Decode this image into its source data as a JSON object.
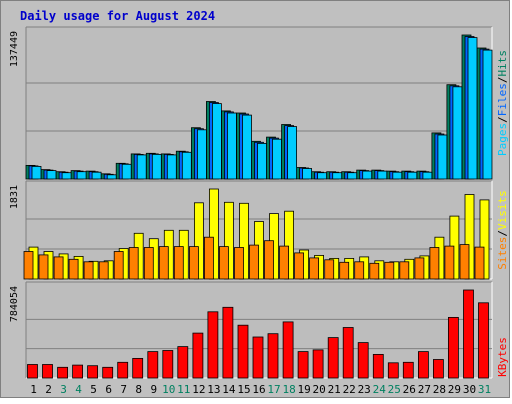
{
  "title": "Daily usage for August 2024",
  "colors": {
    "background": "#c0c0c0",
    "panel": "#bdbdbd",
    "title": "#0000cc",
    "pages": "#00ccff",
    "files": "#0066ff",
    "hits": "#008060",
    "visits": "#ffff00",
    "sites": "#ff8000",
    "kbytes": "#ff0000",
    "weekend_label": "#008060",
    "weekday_label": "#000000"
  },
  "legends": {
    "top": [
      {
        "text": "Pages",
        "color": "#00ccff"
      },
      {
        "text": "/",
        "color": "#000000"
      },
      {
        "text": "Files",
        "color": "#0066ff"
      },
      {
        "text": "/",
        "color": "#000000"
      },
      {
        "text": "Hits",
        "color": "#008060"
      }
    ],
    "middle": [
      {
        "text": "Sites",
        "color": "#ff8000"
      },
      {
        "text": "/",
        "color": "#000000"
      },
      {
        "text": "Visits",
        "color": "#ffff00"
      }
    ],
    "bottom": [
      {
        "text": "KBytes",
        "color": "#ff0000"
      }
    ]
  },
  "max_labels": {
    "top": "137449",
    "middle": "1831",
    "bottom": "784054"
  },
  "chart_data": [
    {
      "type": "bar",
      "panel": "top",
      "categories": [
        "1",
        "2",
        "3",
        "4",
        "5",
        "6",
        "7",
        "8",
        "9",
        "10",
        "11",
        "12",
        "13",
        "14",
        "15",
        "16",
        "17",
        "18",
        "19",
        "20",
        "21",
        "22",
        "23",
        "24",
        "25",
        "26",
        "27",
        "28",
        "29",
        "30",
        "31"
      ],
      "ylim": [
        0,
        137449
      ],
      "series": [
        {
          "name": "Hits",
          "values": [
            13000,
            9000,
            7000,
            8000,
            7500,
            5000,
            15000,
            24000,
            24500,
            24000,
            26500,
            49000,
            74000,
            65000,
            63000,
            36000,
            40000,
            52000,
            11000,
            7000,
            7000,
            7000,
            8500,
            8500,
            7500,
            7500,
            7500,
            44000,
            90000,
            137449,
            125000
          ]
        },
        {
          "name": "Files",
          "values": [
            12500,
            8500,
            6500,
            7500,
            7000,
            4500,
            14500,
            23500,
            24000,
            23500,
            26000,
            48000,
            73000,
            64000,
            62000,
            35000,
            39000,
            51000,
            10500,
            6500,
            6500,
            6500,
            8000,
            8000,
            7000,
            7000,
            7000,
            43000,
            89000,
            136000,
            124000
          ]
        },
        {
          "name": "Pages",
          "values": [
            12000,
            8000,
            6000,
            7000,
            6500,
            4000,
            14000,
            23000,
            23500,
            23000,
            25500,
            47000,
            72000,
            63000,
            61000,
            34000,
            38000,
            50000,
            10000,
            6000,
            6000,
            6000,
            7500,
            7500,
            6500,
            6500,
            6500,
            42000,
            88000,
            135000,
            123000
          ]
        }
      ]
    },
    {
      "type": "bar",
      "panel": "middle",
      "categories": [
        "1",
        "2",
        "3",
        "4",
        "5",
        "6",
        "7",
        "8",
        "9",
        "10",
        "11",
        "12",
        "13",
        "14",
        "15",
        "16",
        "17",
        "18",
        "19",
        "20",
        "21",
        "22",
        "23",
        "24",
        "25",
        "26",
        "27",
        "28",
        "29",
        "30",
        "31"
      ],
      "ylim": [
        0,
        1831
      ],
      "series": [
        {
          "name": "Visits",
          "values": [
            650,
            560,
            510,
            460,
            360,
            370,
            620,
            930,
            820,
            990,
            990,
            1550,
            1831,
            1560,
            1540,
            1170,
            1330,
            1380,
            590,
            480,
            420,
            420,
            450,
            370,
            350,
            400,
            470,
            850,
            1280,
            1720,
            1610
          ]
        },
        {
          "name": "Sites",
          "values": [
            560,
            490,
            450,
            400,
            350,
            350,
            560,
            640,
            640,
            660,
            660,
            660,
            850,
            660,
            640,
            690,
            780,
            670,
            530,
            430,
            390,
            340,
            350,
            320,
            340,
            350,
            430,
            640,
            670,
            700,
            650
          ]
        }
      ]
    },
    {
      "type": "bar",
      "panel": "bottom",
      "categories": [
        "1",
        "2",
        "3",
        "4",
        "5",
        "6",
        "7",
        "8",
        "9",
        "10",
        "11",
        "12",
        "13",
        "14",
        "15",
        "16",
        "17",
        "18",
        "19",
        "20",
        "21",
        "22",
        "23",
        "24",
        "25",
        "26",
        "27",
        "28",
        "29",
        "30",
        "31"
      ],
      "ylim": [
        0,
        784054
      ],
      "series": [
        {
          "name": "KBytes",
          "values": [
            120000,
            120000,
            95000,
            115000,
            110000,
            95000,
            140000,
            175000,
            235000,
            245000,
            280000,
            400000,
            590000,
            630000,
            470000,
            365000,
            395000,
            500000,
            235000,
            250000,
            360000,
            450000,
            315000,
            210000,
            135000,
            140000,
            235000,
            165000,
            540000,
            784054,
            670000
          ]
        }
      ]
    }
  ],
  "days": [
    {
      "label": "1",
      "weekend": false
    },
    {
      "label": "2",
      "weekend": false
    },
    {
      "label": "3",
      "weekend": true
    },
    {
      "label": "4",
      "weekend": true
    },
    {
      "label": "5",
      "weekend": false
    },
    {
      "label": "6",
      "weekend": false
    },
    {
      "label": "7",
      "weekend": false
    },
    {
      "label": "8",
      "weekend": false
    },
    {
      "label": "9",
      "weekend": false
    },
    {
      "label": "10",
      "weekend": true
    },
    {
      "label": "11",
      "weekend": true
    },
    {
      "label": "12",
      "weekend": false
    },
    {
      "label": "13",
      "weekend": false
    },
    {
      "label": "14",
      "weekend": false
    },
    {
      "label": "15",
      "weekend": false
    },
    {
      "label": "16",
      "weekend": false
    },
    {
      "label": "17",
      "weekend": true
    },
    {
      "label": "18",
      "weekend": true
    },
    {
      "label": "19",
      "weekend": false
    },
    {
      "label": "20",
      "weekend": false
    },
    {
      "label": "21",
      "weekend": false
    },
    {
      "label": "22",
      "weekend": false
    },
    {
      "label": "23",
      "weekend": false
    },
    {
      "label": "24",
      "weekend": true
    },
    {
      "label": "25",
      "weekend": true
    },
    {
      "label": "26",
      "weekend": false
    },
    {
      "label": "27",
      "weekend": false
    },
    {
      "label": "28",
      "weekend": false
    },
    {
      "label": "29",
      "weekend": false
    },
    {
      "label": "30",
      "weekend": false
    },
    {
      "label": "31",
      "weekend": true
    }
  ]
}
